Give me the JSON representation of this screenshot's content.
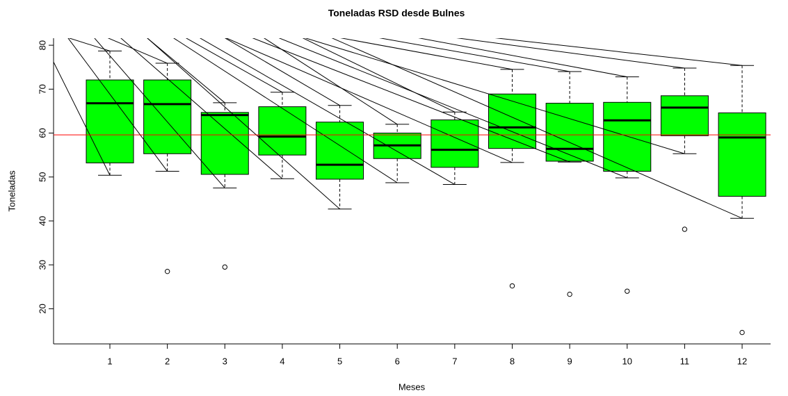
{
  "chart_data": {
    "type": "boxplot",
    "title": "Toneladas RSD desde Bulnes",
    "x_label": "Meses",
    "y_label": "Toneladas",
    "categories": [
      "1",
      "2",
      "3",
      "4",
      "5",
      "6",
      "7",
      "8",
      "9",
      "10",
      "11",
      "12"
    ],
    "whisker_low": [
      50.4,
      51.3,
      47.5,
      49.6,
      42.7,
      48.7,
      48.3,
      53.3,
      53.4,
      49.8,
      55.3,
      40.6
    ],
    "q1": [
      53.2,
      55.3,
      50.6,
      55.0,
      49.5,
      54.2,
      52.2,
      56.5,
      53.6,
      51.3,
      59.4,
      45.6
    ],
    "median": [
      66.8,
      66.6,
      64.1,
      59.2,
      52.8,
      57.2,
      56.2,
      61.3,
      56.4,
      62.9,
      65.8,
      59.0
    ],
    "q3": [
      72.1,
      72.1,
      64.7,
      66.0,
      62.5,
      60.0,
      63.0,
      68.9,
      66.8,
      67.0,
      68.5,
      64.6
    ],
    "whisker_high": [
      78.7,
      75.9,
      66.9,
      69.3,
      66.3,
      62.0,
      64.8,
      74.5,
      74.0,
      72.8,
      74.8,
      75.4
    ],
    "outliers": [
      [],
      [
        28.5
      ],
      [
        29.5
      ],
      [],
      [],
      [],
      [],
      [
        25.2
      ],
      [
        23.3
      ],
      [
        24.0
      ],
      [
        38.1
      ],
      [
        14.6
      ]
    ],
    "color": "#00ff00",
    "reference_line": {
      "value": 59.6,
      "color": "#ff0000"
    },
    "ylim": [
      12,
      81.6
    ],
    "yticks": [
      20,
      30,
      40,
      50,
      60,
      70,
      80
    ]
  }
}
